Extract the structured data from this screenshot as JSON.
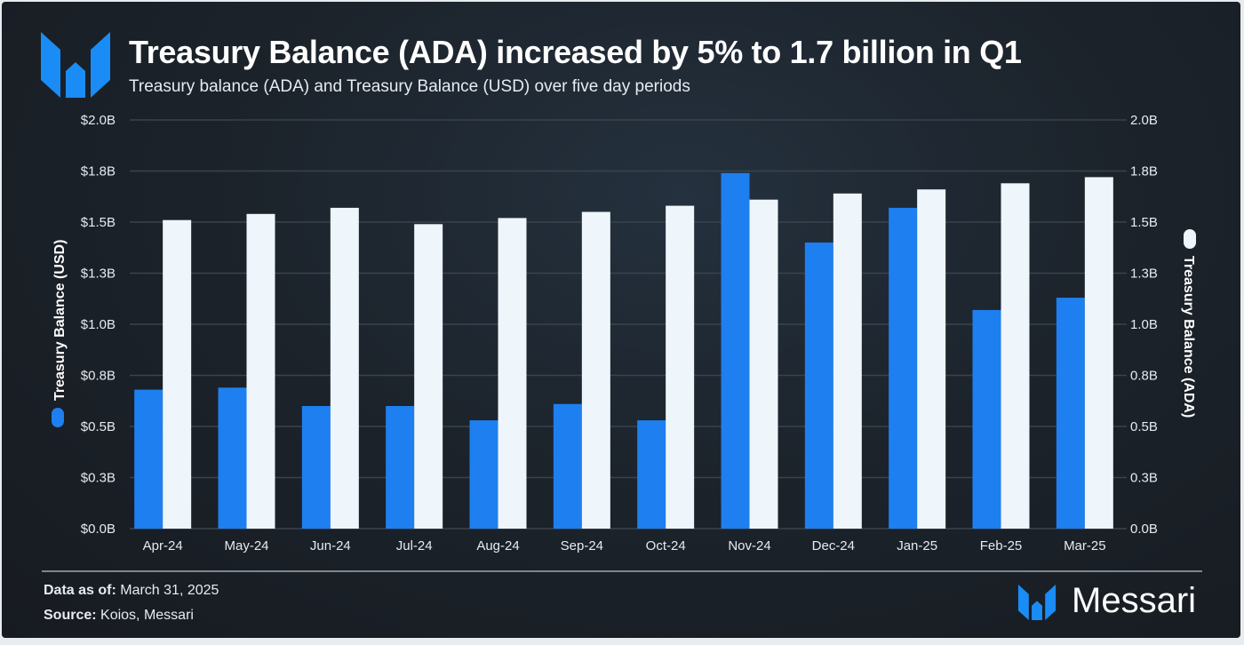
{
  "header": {
    "title": "Treasury Balance (ADA) increased by 5% to 1.7 billion in Q1",
    "subtitle": "Treasury balance (ADA) and Treasury Balance (USD) over five day periods"
  },
  "footer": {
    "data_as_of_label": "Data as of:",
    "data_as_of_value": "March 31, 2025",
    "source_label": "Source:",
    "source_value": "Koios, Messari",
    "brand": "Messari"
  },
  "chart_data": {
    "type": "bar",
    "title": "Treasury Balance (ADA) increased by 5% to 1.7 billion in Q1",
    "subtitle": "Treasury balance (ADA) and Treasury Balance (USD) over five day periods",
    "categories": [
      "Apr-24",
      "May-24",
      "Jun-24",
      "Jul-24",
      "Aug-24",
      "Sep-24",
      "Oct-24",
      "Nov-24",
      "Dec-24",
      "Jan-25",
      "Feb-25",
      "Mar-25"
    ],
    "series": [
      {
        "name": "Treasury Balance (USD)",
        "axis": "left",
        "color": "#1e7ff0",
        "values": [
          0.68,
          0.69,
          0.6,
          0.6,
          0.53,
          0.61,
          0.53,
          1.74,
          1.4,
          1.57,
          1.07,
          1.13
        ]
      },
      {
        "name": "Treasury Balance (ADA)",
        "axis": "right",
        "color": "#eef6fb",
        "values": [
          1.51,
          1.54,
          1.57,
          1.49,
          1.52,
          1.55,
          1.58,
          1.61,
          1.64,
          1.66,
          1.69,
          1.72
        ]
      }
    ],
    "ylabel_left": "Treasury Balance (USD)",
    "ylabel_right": "Treasury Balance (ADA)",
    "ylim": [
      0,
      2.0
    ],
    "yticks": [
      0,
      0.25,
      0.5,
      0.75,
      1.0,
      1.25,
      1.5,
      1.75,
      2.0
    ],
    "ytick_labels_left": [
      "$0.0B",
      "$0.3B",
      "$0.5B",
      "$0.8B",
      "$1.0B",
      "$1.3B",
      "$1.5B",
      "$1.8B",
      "$2.0B"
    ],
    "ytick_labels_right": [
      "0.0B",
      "0.3B",
      "0.5B",
      "0.8B",
      "1.0B",
      "1.3B",
      "1.5B",
      "1.8B",
      "2.0B"
    ],
    "grid": true
  }
}
